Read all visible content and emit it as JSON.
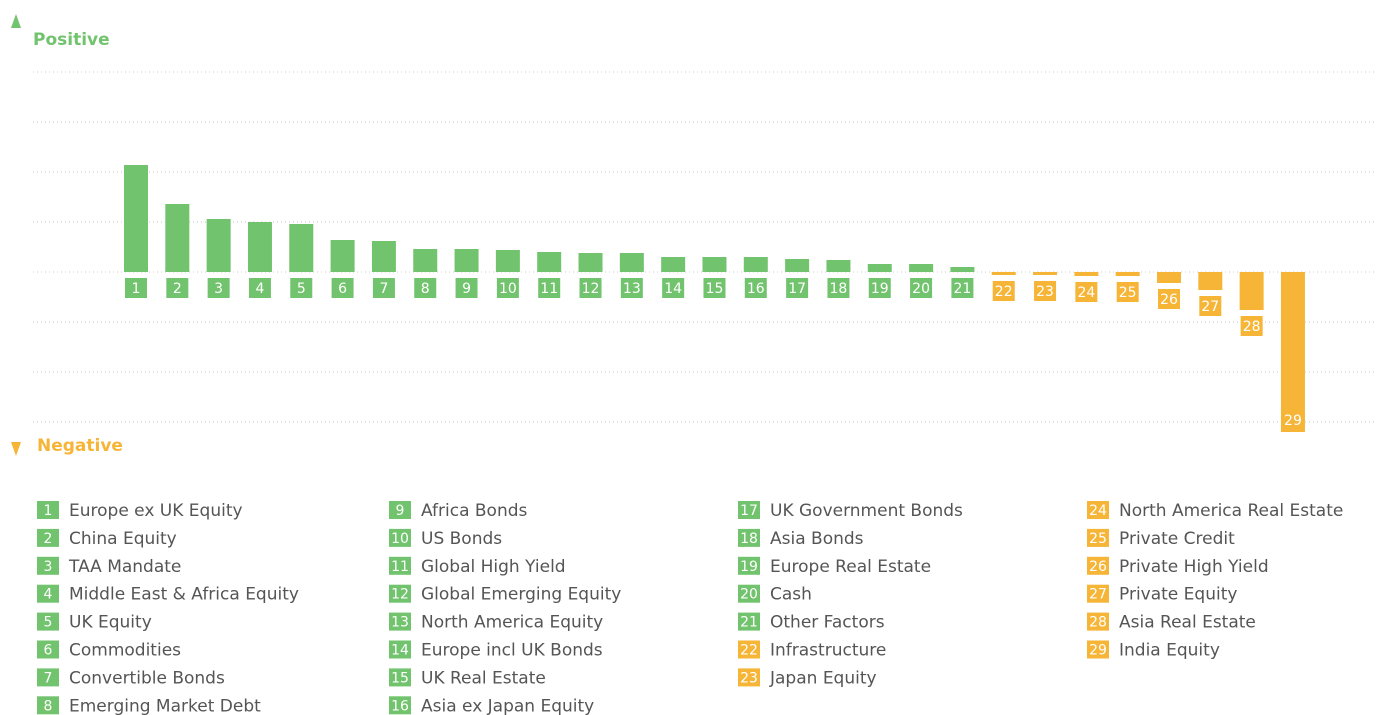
{
  "chart_data": {
    "type": "bar",
    "y_top_label": "Positive",
    "y_bottom_label": "Negative",
    "ids": [
      "1",
      "2",
      "3",
      "4",
      "5",
      "6",
      "7",
      "8",
      "9",
      "10",
      "11",
      "12",
      "13",
      "14",
      "15",
      "16",
      "17",
      "18",
      "19",
      "20",
      "21",
      "22",
      "23",
      "24",
      "25",
      "26",
      "27",
      "28",
      "29"
    ],
    "categories": [
      "Europe ex UK Equity",
      "China Equity",
      "TAA Mandate",
      "Middle East & Africa Equity",
      "UK Equity",
      "Commodities",
      "Convertible Bonds",
      "Emerging Market Debt",
      "Africa Bonds",
      "US Bonds",
      "Global High Yield",
      "Global Emerging Equity",
      "North America Equity",
      "Europe incl UK Bonds",
      "UK Real Estate",
      "Asia ex Japan Equity",
      "UK Government Bonds",
      "Asia Bonds",
      "Europe Real Estate",
      "Cash",
      "Other Factors",
      "Infrastructure",
      "Japan Equity",
      "North America Real Estate",
      "Private Credit",
      "Private High Yield",
      "Private Equity",
      "Asia Real Estate",
      "India Equity"
    ],
    "values": [
      2.14,
      1.36,
      1.06,
      1.0,
      0.96,
      0.64,
      0.62,
      0.46,
      0.46,
      0.44,
      0.4,
      0.38,
      0.38,
      0.3,
      0.3,
      0.3,
      0.26,
      0.24,
      0.16,
      0.16,
      0.1,
      -0.06,
      -0.06,
      -0.08,
      -0.08,
      -0.22,
      -0.36,
      -0.76,
      -3.2
    ],
    "colors": {
      "positive": "#72c36e",
      "negative": "#f6b537"
    },
    "ylim": [
      -3.56,
      5.04
    ],
    "yticks": [
      -3,
      -2,
      -1,
      0,
      1,
      2,
      3,
      4
    ],
    "grid": true
  }
}
